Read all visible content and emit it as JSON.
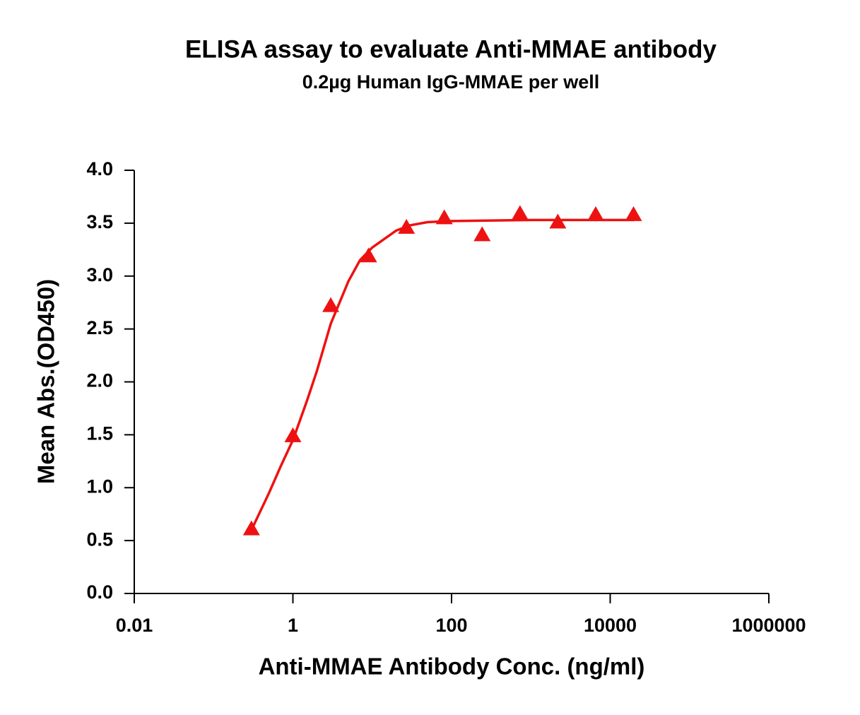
{
  "chart_data": {
    "type": "scatter",
    "title": "ELISA assay to evaluate Anti-MMAE antibody",
    "subtitle": "0.2µg Human IgG-MMAE per well",
    "x_label": "Anti-MMAE Antibody Conc. (ng/ml)",
    "y_label": "Mean Abs.(OD450)",
    "x_scale": "log",
    "xlim": [
      0.01,
      1000000
    ],
    "xticks": [
      0.01,
      1,
      100,
      10000,
      1000000
    ],
    "ylim": [
      0,
      4
    ],
    "yticks": [
      {
        "value": 0,
        "label": "0.0"
      },
      {
        "value": 0.5,
        "label": "0.5"
      },
      {
        "value": 1,
        "label": "1.0"
      },
      {
        "value": 1.5,
        "label": "1.5"
      },
      {
        "value": 2,
        "label": "2.0"
      },
      {
        "value": 2.5,
        "label": "2.5"
      },
      {
        "value": 3,
        "label": "3.0"
      },
      {
        "value": 3.5,
        "label": "3.5"
      },
      {
        "value": 4,
        "label": "4.0"
      }
    ],
    "grid": false,
    "series": [
      {
        "color": "#ee1111",
        "marker": "triangle",
        "x": [
          0.3,
          1,
          3,
          9,
          27,
          81,
          243,
          729,
          2187,
          6561,
          19683
        ],
        "values": [
          0.61,
          1.49,
          2.72,
          3.19,
          3.46,
          3.55,
          3.39,
          3.59,
          3.51,
          3.58,
          3.58
        ]
      },
      {
        "color": "#ee1111",
        "marker": "line",
        "x": [
          0.3,
          0.5,
          0.7,
          1,
          1.5,
          2,
          3,
          5,
          7,
          10,
          20,
          30,
          50,
          100,
          1000,
          20000
        ],
        "values": [
          0.6,
          0.95,
          1.2,
          1.45,
          1.82,
          2.1,
          2.55,
          2.95,
          3.15,
          3.27,
          3.43,
          3.48,
          3.51,
          3.52,
          3.53,
          3.53
        ]
      }
    ]
  }
}
